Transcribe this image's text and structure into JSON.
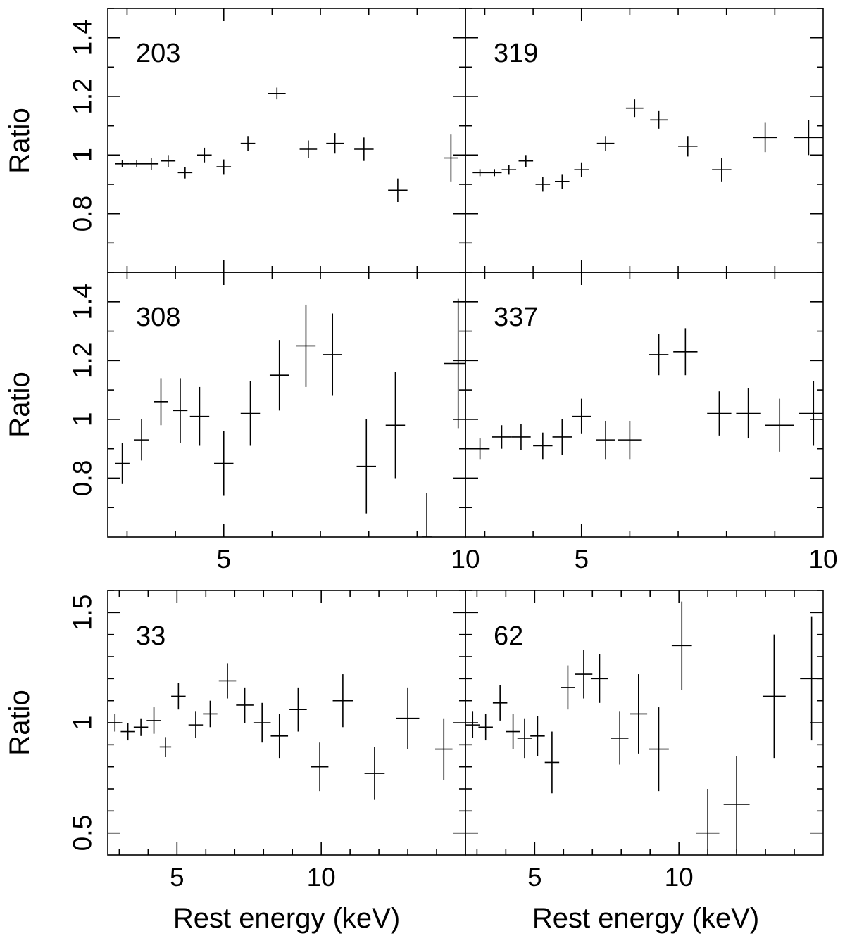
{
  "figure": {
    "ylabel": "Ratio",
    "xlabel": "Rest energy (keV)"
  },
  "chart_data": [
    {
      "type": "scatter",
      "label": "203",
      "group": "top",
      "column": 0,
      "row": 0,
      "xlim": [
        2.6,
        10.0
      ],
      "ylim": [
        0.6,
        1.5
      ],
      "yticks": [
        "0.8",
        "1",
        "1.2",
        "1.4"
      ],
      "xticks": [],
      "series": [
        {
          "points": [
            {
              "x": 2.9,
              "xerr": 0.15,
              "y": 0.97,
              "yerr": 0.012
            },
            {
              "x": 3.2,
              "xerr": 0.15,
              "y": 0.97,
              "yerr": 0.012
            },
            {
              "x": 3.5,
              "xerr": 0.15,
              "y": 0.97,
              "yerr": 0.02
            },
            {
              "x": 3.85,
              "xerr": 0.15,
              "y": 0.98,
              "yerr": 0.02
            },
            {
              "x": 4.2,
              "xerr": 0.15,
              "y": 0.94,
              "yerr": 0.02
            },
            {
              "x": 4.6,
              "xerr": 0.15,
              "y": 1.0,
              "yerr": 0.025
            },
            {
              "x": 5.0,
              "xerr": 0.15,
              "y": 0.96,
              "yerr": 0.025
            },
            {
              "x": 5.5,
              "xerr": 0.15,
              "y": 1.04,
              "yerr": 0.025
            },
            {
              "x": 6.1,
              "xerr": 0.18,
              "y": 1.21,
              "yerr": 0.02
            },
            {
              "x": 6.75,
              "xerr": 0.18,
              "y": 1.02,
              "yerr": 0.03
            },
            {
              "x": 7.3,
              "xerr": 0.18,
              "y": 1.04,
              "yerr": 0.035
            },
            {
              "x": 7.9,
              "xerr": 0.2,
              "y": 1.02,
              "yerr": 0.04
            },
            {
              "x": 8.6,
              "xerr": 0.2,
              "y": 0.88,
              "yerr": 0.04
            },
            {
              "x": 9.7,
              "xerr": 0.15,
              "y": 0.99,
              "yerr": 0.08
            }
          ]
        }
      ]
    },
    {
      "type": "scatter",
      "label": "319",
      "group": "top",
      "column": 1,
      "row": 0,
      "xlim": [
        2.6,
        10.0
      ],
      "ylim": [
        0.6,
        1.5
      ],
      "yticks": [],
      "xticks": [],
      "series": [
        {
          "points": [
            {
              "x": 2.9,
              "xerr": 0.15,
              "y": 0.94,
              "yerr": 0.012
            },
            {
              "x": 3.2,
              "xerr": 0.15,
              "y": 0.94,
              "yerr": 0.012
            },
            {
              "x": 3.5,
              "xerr": 0.15,
              "y": 0.95,
              "yerr": 0.015
            },
            {
              "x": 3.85,
              "xerr": 0.15,
              "y": 0.98,
              "yerr": 0.02
            },
            {
              "x": 4.2,
              "xerr": 0.15,
              "y": 0.9,
              "yerr": 0.025
            },
            {
              "x": 4.6,
              "xerr": 0.15,
              "y": 0.91,
              "yerr": 0.025
            },
            {
              "x": 5.0,
              "xerr": 0.15,
              "y": 0.95,
              "yerr": 0.025
            },
            {
              "x": 5.5,
              "xerr": 0.18,
              "y": 1.04,
              "yerr": 0.025
            },
            {
              "x": 6.1,
              "xerr": 0.18,
              "y": 1.16,
              "yerr": 0.03
            },
            {
              "x": 6.6,
              "xerr": 0.18,
              "y": 1.12,
              "yerr": 0.03
            },
            {
              "x": 7.2,
              "xerr": 0.2,
              "y": 1.03,
              "yerr": 0.035
            },
            {
              "x": 7.9,
              "xerr": 0.2,
              "y": 0.95,
              "yerr": 0.04
            },
            {
              "x": 8.8,
              "xerr": 0.25,
              "y": 1.06,
              "yerr": 0.05
            },
            {
              "x": 9.7,
              "xerr": 0.3,
              "y": 1.06,
              "yerr": 0.06
            }
          ]
        }
      ]
    },
    {
      "type": "scatter",
      "label": "308",
      "group": "top",
      "column": 0,
      "row": 1,
      "xlim": [
        2.6,
        10.0
      ],
      "ylim": [
        0.6,
        1.5
      ],
      "yticks": [
        "0.8",
        "1",
        "1.2",
        "1.4"
      ],
      "xticks": [
        "5",
        "10"
      ],
      "series": [
        {
          "points": [
            {
              "x": 2.9,
              "xerr": 0.15,
              "y": 0.85,
              "yerr": 0.07
            },
            {
              "x": 3.3,
              "xerr": 0.15,
              "y": 0.93,
              "yerr": 0.07
            },
            {
              "x": 3.7,
              "xerr": 0.15,
              "y": 1.06,
              "yerr": 0.08
            },
            {
              "x": 4.1,
              "xerr": 0.15,
              "y": 1.03,
              "yerr": 0.11
            },
            {
              "x": 4.5,
              "xerr": 0.2,
              "y": 1.01,
              "yerr": 0.1
            },
            {
              "x": 5.0,
              "xerr": 0.2,
              "y": 0.85,
              "yerr": 0.11
            },
            {
              "x": 5.55,
              "xerr": 0.2,
              "y": 1.02,
              "yerr": 0.11
            },
            {
              "x": 6.15,
              "xerr": 0.2,
              "y": 1.15,
              "yerr": 0.12
            },
            {
              "x": 6.7,
              "xerr": 0.2,
              "y": 1.25,
              "yerr": 0.14
            },
            {
              "x": 7.25,
              "xerr": 0.2,
              "y": 1.22,
              "yerr": 0.14
            },
            {
              "x": 7.95,
              "xerr": 0.2,
              "y": 0.84,
              "yerr": 0.16
            },
            {
              "x": 8.55,
              "xerr": 0.2,
              "y": 0.98,
              "yerr": 0.18
            },
            {
              "x": 9.2,
              "xerr": 0.1,
              "y": 0.6,
              "yerr": 0.15
            },
            {
              "x": 9.85,
              "xerr": 0.3,
              "y": 1.19,
              "yerr": 0.22
            }
          ]
        }
      ]
    },
    {
      "type": "scatter",
      "label": "337",
      "group": "top",
      "column": 1,
      "row": 1,
      "xlim": [
        2.6,
        10.0
      ],
      "ylim": [
        0.6,
        1.5
      ],
      "yticks": [],
      "xticks": [
        "5",
        "10"
      ],
      "series": [
        {
          "points": [
            {
              "x": 2.9,
              "xerr": 0.2,
              "y": 0.9,
              "yerr": 0.035
            },
            {
              "x": 3.35,
              "xerr": 0.2,
              "y": 0.94,
              "yerr": 0.04
            },
            {
              "x": 3.75,
              "xerr": 0.2,
              "y": 0.94,
              "yerr": 0.045
            },
            {
              "x": 4.2,
              "xerr": 0.2,
              "y": 0.91,
              "yerr": 0.045
            },
            {
              "x": 4.6,
              "xerr": 0.2,
              "y": 0.94,
              "yerr": 0.06
            },
            {
              "x": 5.0,
              "xerr": 0.2,
              "y": 1.01,
              "yerr": 0.06
            },
            {
              "x": 5.5,
              "xerr": 0.2,
              "y": 0.93,
              "yerr": 0.065
            },
            {
              "x": 6.0,
              "xerr": 0.25,
              "y": 0.93,
              "yerr": 0.065
            },
            {
              "x": 6.6,
              "xerr": 0.2,
              "y": 1.22,
              "yerr": 0.07
            },
            {
              "x": 7.15,
              "xerr": 0.25,
              "y": 1.23,
              "yerr": 0.08
            },
            {
              "x": 7.85,
              "xerr": 0.25,
              "y": 1.02,
              "yerr": 0.075
            },
            {
              "x": 8.45,
              "xerr": 0.25,
              "y": 1.02,
              "yerr": 0.085
            },
            {
              "x": 9.1,
              "xerr": 0.3,
              "y": 0.98,
              "yerr": 0.09
            },
            {
              "x": 9.8,
              "xerr": 0.3,
              "y": 1.02,
              "yerr": 0.11
            }
          ]
        }
      ]
    },
    {
      "type": "scatter",
      "label": "33",
      "group": "bottom",
      "column": 0,
      "row": 2,
      "xlim": [
        2.6,
        15.0
      ],
      "ylim": [
        0.4,
        1.6
      ],
      "yticks": [
        "0.5",
        "1",
        "1.5"
      ],
      "xticks": [
        "5",
        "10"
      ],
      "series": [
        {
          "points": [
            {
              "x": 2.85,
              "xerr": 0.25,
              "y": 1.0,
              "yerr": 0.04
            },
            {
              "x": 3.3,
              "xerr": 0.25,
              "y": 0.96,
              "yerr": 0.04
            },
            {
              "x": 3.75,
              "xerr": 0.25,
              "y": 0.98,
              "yerr": 0.04
            },
            {
              "x": 4.2,
              "xerr": 0.25,
              "y": 1.01,
              "yerr": 0.06
            },
            {
              "x": 4.6,
              "xerr": 0.2,
              "y": 0.89,
              "yerr": 0.045
            },
            {
              "x": 5.05,
              "xerr": 0.25,
              "y": 1.12,
              "yerr": 0.06
            },
            {
              "x": 5.65,
              "xerr": 0.25,
              "y": 0.99,
              "yerr": 0.06
            },
            {
              "x": 6.15,
              "xerr": 0.25,
              "y": 1.04,
              "yerr": 0.06
            },
            {
              "x": 6.75,
              "xerr": 0.3,
              "y": 1.19,
              "yerr": 0.08
            },
            {
              "x": 7.35,
              "xerr": 0.3,
              "y": 1.08,
              "yerr": 0.08
            },
            {
              "x": 7.95,
              "xerr": 0.3,
              "y": 1.0,
              "yerr": 0.09
            },
            {
              "x": 8.55,
              "xerr": 0.3,
              "y": 0.94,
              "yerr": 0.1
            },
            {
              "x": 9.2,
              "xerr": 0.3,
              "y": 1.06,
              "yerr": 0.1
            },
            {
              "x": 9.95,
              "xerr": 0.3,
              "y": 0.8,
              "yerr": 0.11
            },
            {
              "x": 10.75,
              "xerr": 0.35,
              "y": 1.1,
              "yerr": 0.12
            },
            {
              "x": 11.85,
              "xerr": 0.35,
              "y": 0.77,
              "yerr": 0.12
            },
            {
              "x": 13.0,
              "xerr": 0.4,
              "y": 1.02,
              "yerr": 0.14
            },
            {
              "x": 14.25,
              "xerr": 0.3,
              "y": 0.88,
              "yerr": 0.14
            }
          ]
        }
      ]
    },
    {
      "type": "scatter",
      "label": "62",
      "group": "bottom",
      "column": 1,
      "row": 2,
      "xlim": [
        2.6,
        15.0
      ],
      "ylim": [
        0.4,
        1.6
      ],
      "yticks": [],
      "xticks": [
        "5",
        "10"
      ],
      "series": [
        {
          "points": [
            {
              "x": 2.85,
              "xerr": 0.25,
              "y": 0.99,
              "yerr": 0.06
            },
            {
              "x": 3.3,
              "xerr": 0.25,
              "y": 0.98,
              "yerr": 0.06
            },
            {
              "x": 3.8,
              "xerr": 0.25,
              "y": 1.09,
              "yerr": 0.08
            },
            {
              "x": 4.25,
              "xerr": 0.25,
              "y": 0.96,
              "yerr": 0.08
            },
            {
              "x": 4.65,
              "xerr": 0.25,
              "y": 0.93,
              "yerr": 0.09
            },
            {
              "x": 5.1,
              "xerr": 0.25,
              "y": 0.94,
              "yerr": 0.09
            },
            {
              "x": 5.6,
              "xerr": 0.25,
              "y": 0.82,
              "yerr": 0.14
            },
            {
              "x": 6.15,
              "xerr": 0.25,
              "y": 1.16,
              "yerr": 0.1
            },
            {
              "x": 6.7,
              "xerr": 0.3,
              "y": 1.22,
              "yerr": 0.11
            },
            {
              "x": 7.25,
              "xerr": 0.3,
              "y": 1.2,
              "yerr": 0.11
            },
            {
              "x": 7.95,
              "xerr": 0.3,
              "y": 0.93,
              "yerr": 0.12
            },
            {
              "x": 8.6,
              "xerr": 0.3,
              "y": 1.04,
              "yerr": 0.18
            },
            {
              "x": 9.3,
              "xerr": 0.35,
              "y": 0.88,
              "yerr": 0.19
            },
            {
              "x": 10.1,
              "xerr": 0.35,
              "y": 1.35,
              "yerr": 0.2
            },
            {
              "x": 11.0,
              "xerr": 0.4,
              "y": 0.5,
              "yerr": 0.2
            },
            {
              "x": 12.0,
              "xerr": 0.45,
              "y": 0.63,
              "yerr": 0.22
            },
            {
              "x": 13.3,
              "xerr": 0.4,
              "y": 1.12,
              "yerr": 0.28
            },
            {
              "x": 14.6,
              "xerr": 0.4,
              "y": 1.2,
              "yerr": 0.28
            }
          ]
        }
      ]
    }
  ]
}
